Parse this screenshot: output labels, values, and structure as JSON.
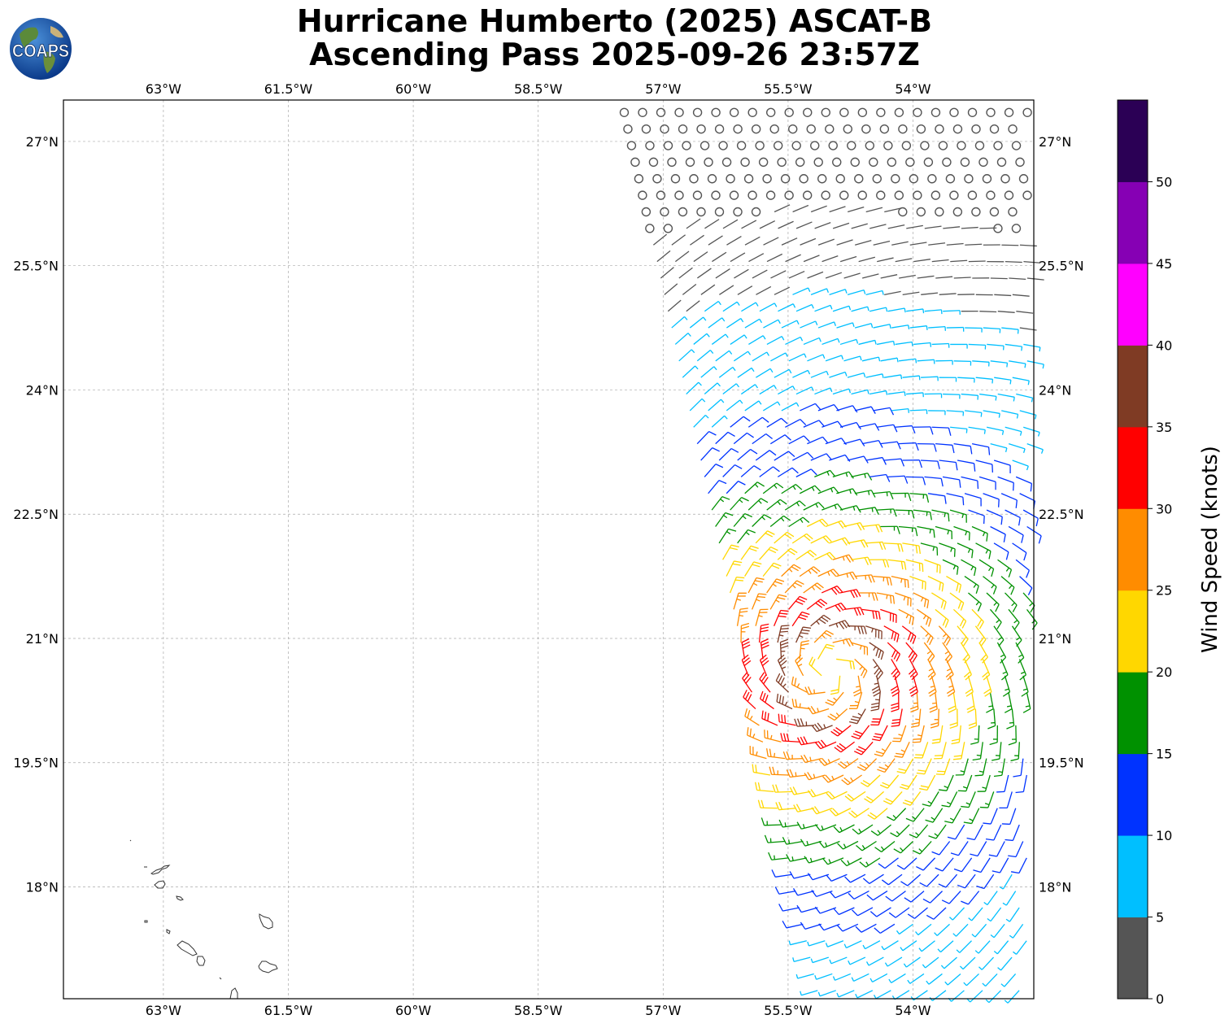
{
  "title": {
    "line1": "Hurricane Humberto (2025) ASCAT-B",
    "line2": "Ascending Pass 2025-09-26 23:57Z"
  },
  "logo": {
    "text": "COAPS"
  },
  "map": {
    "lon_range": [
      -64.2,
      -52.55
    ],
    "lat_range": [
      16.65,
      27.5
    ],
    "lon_ticks": [
      {
        "value": -63,
        "label": "63°W"
      },
      {
        "value": -61.5,
        "label": "61.5°W"
      },
      {
        "value": -60,
        "label": "60°W"
      },
      {
        "value": -58.5,
        "label": "58.5°W"
      },
      {
        "value": -57,
        "label": "57°W"
      },
      {
        "value": -55.5,
        "label": "55.5°W"
      },
      {
        "value": -54,
        "label": "54°W"
      }
    ],
    "lat_ticks": [
      {
        "value": 27,
        "label": "27°N"
      },
      {
        "value": 25.5,
        "label": "25.5°N"
      },
      {
        "value": 24,
        "label": "24°N"
      },
      {
        "value": 22.5,
        "label": "22.5°N"
      },
      {
        "value": 21,
        "label": "21°N"
      },
      {
        "value": 19.5,
        "label": "19.5°N"
      },
      {
        "value": 18,
        "label": "18°N"
      }
    ],
    "grid": true,
    "coastline_color": "#333333",
    "storm_center": {
      "lon": -55.0,
      "lat": 20.6
    },
    "swath": {
      "west_edge": [
        [
          -57.5,
          27.5
        ],
        [
          -55.2,
          17.0
        ]
      ],
      "east_edge": [
        [
          -52.55,
          27.5
        ],
        [
          -52.55,
          17.0
        ]
      ],
      "south_edge_lat": 16.65
    }
  },
  "colorbar": {
    "label": "Wind Speed (knots)",
    "tick_labels": [
      "0",
      "5",
      "10",
      "15",
      "20",
      "25",
      "30",
      "35",
      "40",
      "45",
      "50"
    ],
    "bins": [
      {
        "min": 0,
        "max": 5,
        "color": "#555555"
      },
      {
        "min": 5,
        "max": 10,
        "color": "#00bfff"
      },
      {
        "min": 10,
        "max": 15,
        "color": "#0033ff"
      },
      {
        "min": 15,
        "max": 20,
        "color": "#009100"
      },
      {
        "min": 20,
        "max": 25,
        "color": "#ffd700"
      },
      {
        "min": 25,
        "max": 30,
        "color": "#ff8c00"
      },
      {
        "min": 30,
        "max": 35,
        "color": "#ff0000"
      },
      {
        "min": 35,
        "max": 40,
        "color": "#7f3b24"
      },
      {
        "min": 40,
        "max": 45,
        "color": "#ff00ff"
      },
      {
        "min": 45,
        "max": 50,
        "color": "#8600b4"
      },
      {
        "min": 50,
        "max": 55,
        "color": "#2b0055"
      }
    ]
  }
}
